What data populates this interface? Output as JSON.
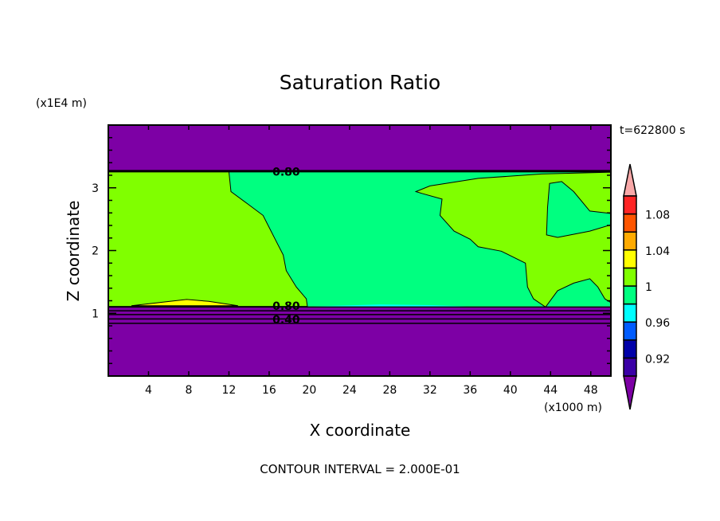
{
  "chart_data": {
    "type": "heatmap",
    "subtype": "filled-contour",
    "title": "Saturation Ratio",
    "xlabel": "X coordinate",
    "ylabel": "Z coordinate",
    "x_unit": "(x1000 m)",
    "y_unit": "(x1E4 m)",
    "time_label": "t=622800 s",
    "footer": "CONTOUR INTERVAL = 2.000E-01",
    "xlim": [
      0,
      50
    ],
    "ylim": [
      0,
      4
    ],
    "xticks": [
      4,
      8,
      12,
      16,
      20,
      24,
      28,
      32,
      36,
      40,
      44,
      48
    ],
    "xtick_labels": [
      "4",
      "8",
      "12",
      "16",
      "20",
      "24",
      "28",
      "32",
      "36",
      "40",
      "44",
      "48"
    ],
    "yticks": [
      1,
      2,
      3
    ],
    "ytick_labels": [
      "1",
      "2",
      "3"
    ],
    "colorbar": {
      "levels": [
        0.9,
        0.92,
        0.94,
        0.96,
        0.98,
        1.0,
        1.02,
        1.04,
        1.06,
        1.08,
        1.1
      ],
      "colors": [
        "#3a00a6",
        "#0000a8",
        "#005cff",
        "#00ffff",
        "#00ff80",
        "#80ff00",
        "#ffff00",
        "#ffaa00",
        "#ff5500",
        "#ff2525"
      ],
      "under_color": "#7d00a5",
      "over_color": "#f8a8a8",
      "labels": [
        {
          "value": 0.92,
          "text": "0.92"
        },
        {
          "value": 0.96,
          "text": "0.96"
        },
        {
          "value": 1.0,
          "text": "1"
        },
        {
          "value": 1.04,
          "text": "1.04"
        },
        {
          "value": 1.08,
          "text": "1.08"
        }
      ]
    },
    "regions": [
      {
        "name": "background-saturated",
        "color": "#00ff80",
        "polygon": [
          [
            0,
            1.11
          ],
          [
            50,
            1.11
          ],
          [
            50,
            3.26
          ],
          [
            0,
            3.26
          ]
        ]
      },
      {
        "name": "left-supersaturated",
        "color": "#80ff00",
        "polygon": [
          [
            0,
            3.26
          ],
          [
            12.0,
            3.26
          ],
          [
            12.2,
            2.94
          ],
          [
            13.8,
            2.75
          ],
          [
            15.4,
            2.56
          ],
          [
            16.0,
            2.37
          ],
          [
            16.6,
            2.18
          ],
          [
            17.4,
            1.93
          ],
          [
            17.7,
            1.68
          ],
          [
            18.7,
            1.42
          ],
          [
            19.7,
            1.23
          ],
          [
            19.8,
            1.11
          ],
          [
            0,
            1.11
          ]
        ]
      },
      {
        "name": "right-supersaturated",
        "color": "#80ff00",
        "polygon": [
          [
            30.6,
            2.94
          ],
          [
            32.0,
            3.03
          ],
          [
            36.8,
            3.15
          ],
          [
            43.1,
            3.22
          ],
          [
            50,
            3.25
          ],
          [
            50,
            1.17
          ],
          [
            49.4,
            1.23
          ],
          [
            48.7,
            1.42
          ],
          [
            47.9,
            1.55
          ],
          [
            46.3,
            1.48
          ],
          [
            44.7,
            1.36
          ],
          [
            43.5,
            1.1
          ],
          [
            42.3,
            1.23
          ],
          [
            41.7,
            1.42
          ],
          [
            41.5,
            1.8
          ],
          [
            39.1,
            1.99
          ],
          [
            36.8,
            2.06
          ],
          [
            36.0,
            2.18
          ],
          [
            34.4,
            2.31
          ],
          [
            33.0,
            2.56
          ],
          [
            33.2,
            2.82
          ],
          [
            31.2,
            2.91
          ]
        ]
      },
      {
        "name": "right-hole-saturated",
        "color": "#00ff80",
        "polygon": [
          [
            43.9,
            3.07
          ],
          [
            45.1,
            3.1
          ],
          [
            46.3,
            2.94
          ],
          [
            47.9,
            2.63
          ],
          [
            50,
            2.59
          ],
          [
            50,
            2.41
          ],
          [
            47.9,
            2.31
          ],
          [
            44.7,
            2.21
          ],
          [
            43.6,
            2.25
          ],
          [
            43.7,
            2.69
          ]
        ]
      },
      {
        "name": "yellow-patch",
        "color": "#ffff00",
        "polygon": [
          [
            2.3,
            1.12
          ],
          [
            5,
            1.17
          ],
          [
            7.8,
            1.22
          ],
          [
            10,
            1.19
          ],
          [
            12.9,
            1.12
          ]
        ]
      },
      {
        "name": "cyan-strip",
        "color": "#00ffff",
        "polygon": [
          [
            20,
            1.11
          ],
          [
            27,
            1.14
          ],
          [
            32,
            1.13
          ],
          [
            36,
            1.11
          ]
        ]
      },
      {
        "name": "top-dry-layer",
        "color": "#7d00a5",
        "polygon": [
          [
            0,
            3.27
          ],
          [
            50,
            3.27
          ],
          [
            50,
            4
          ],
          [
            0,
            4
          ]
        ]
      },
      {
        "name": "bottom-dry-layer",
        "color": "#7d00a5",
        "polygon": [
          [
            0,
            0
          ],
          [
            50,
            0
          ],
          [
            50,
            1.1
          ],
          [
            0,
            1.1
          ]
        ]
      }
    ],
    "contour_lines_z": [
      3.265,
      1.1,
      1.04,
      0.98,
      0.91,
      0.84
    ],
    "contour_labels": [
      {
        "text": "0.80",
        "x": 17.7,
        "z": 3.26
      },
      {
        "text": "0.80",
        "x": 17.7,
        "z": 1.12
      },
      {
        "text": "0.40",
        "x": 17.7,
        "z": 1.0
      }
    ]
  }
}
